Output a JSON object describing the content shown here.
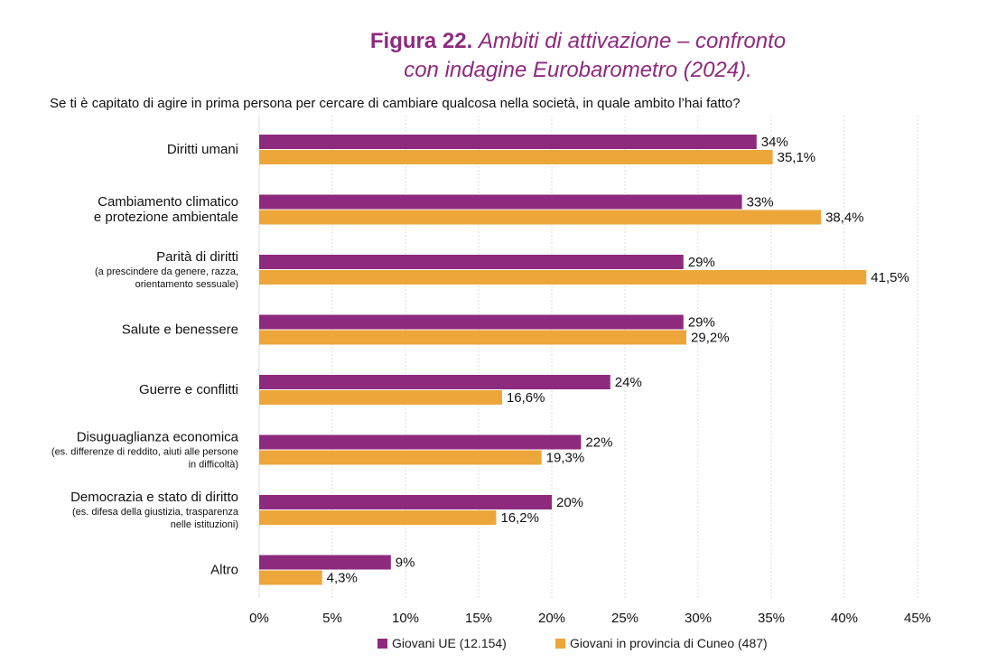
{
  "title": {
    "lead": "Figura 22.",
    "rest_line1": "Ambiti di attivazione – confronto",
    "rest_line2": "con indagine Eurobarometro (2024)."
  },
  "question": "Se ti è capitato di agire in prima persona per cercare di cambiare qualcosa nella società, in quale ambito l’hai fatto?",
  "colors": {
    "series_1": "#8e2a7e",
    "series_2": "#eda63a",
    "grid": "#dddddd"
  },
  "legend": [
    {
      "label": "Giovani UE (12.154)"
    },
    {
      "label": "Giovani in provincia di Cuneo (487)"
    }
  ],
  "chart_data": {
    "type": "bar",
    "orientation": "horizontal",
    "categories": [
      {
        "main": "Diritti umani",
        "sub": []
      },
      {
        "main": "Cambiamento climatico",
        "main2": "e protezione ambientale",
        "sub": []
      },
      {
        "main": "Parità di diritti",
        "sub": [
          "(a prescindere da genere, razza,",
          "orientamento sessuale)"
        ]
      },
      {
        "main": "Salute e benessere",
        "sub": []
      },
      {
        "main": "Guerre e conflitti",
        "sub": []
      },
      {
        "main": "Disuguaglianza economica",
        "sub": [
          "(es. differenze di reddito, aiuti alle persone",
          "in difficoltà)"
        ]
      },
      {
        "main": "Democrazia e stato di diritto",
        "sub": [
          "(es. difesa della giustizia, trasparenza",
          "nelle istituzioni)"
        ]
      },
      {
        "main": "Altro",
        "sub": []
      }
    ],
    "series": [
      {
        "name": "Giovani UE (12.154)",
        "values": [
          34,
          33,
          29,
          29,
          24,
          22,
          20,
          9
        ],
        "labels": [
          "34%",
          "33%",
          "29%",
          "29%",
          "24%",
          "22%",
          "20%",
          "9%"
        ]
      },
      {
        "name": "Giovani in provincia di Cuneo (487)",
        "values": [
          35.1,
          38.4,
          41.5,
          29.2,
          16.6,
          19.3,
          16.2,
          4.3
        ],
        "labels": [
          "35,1%",
          "38,4%",
          "41,5%",
          "29,2%",
          "16,6%",
          "19,3%",
          "16,2%",
          "4,3%"
        ]
      }
    ],
    "xlim": [
      0,
      45
    ],
    "xticks": [
      0,
      5,
      10,
      15,
      20,
      25,
      30,
      35,
      40,
      45
    ],
    "xtick_labels": [
      "0%",
      "5%",
      "10%",
      "15%",
      "20%",
      "25%",
      "30%",
      "35%",
      "40%",
      "45%"
    ],
    "grid": "vertical",
    "legend_position": "bottom"
  }
}
